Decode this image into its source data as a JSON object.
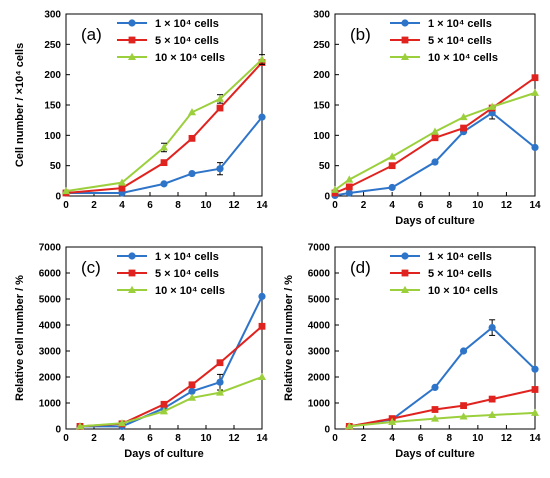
{
  "figure": {
    "chart_data": [
      {
        "type": "line",
        "panel_label": "(a)",
        "xlabel": "",
        "ylabel": "Cell number / ×10⁴ cells",
        "xlim": [
          0,
          14
        ],
        "ylim": [
          0,
          300
        ],
        "xticks": [
          0,
          2,
          4,
          6,
          8,
          10,
          12,
          14
        ],
        "yticks": [
          0,
          50,
          100,
          150,
          200,
          250,
          300
        ],
        "grid": false,
        "legend_position": "top-right",
        "series": [
          {
            "name": "1 × 10⁴ cells",
            "color": "#2e74c9",
            "marker": "circle",
            "x": [
              0,
              4,
              7,
              9,
              11,
              14
            ],
            "y": [
              5,
              5,
              20,
              37,
              45,
              130
            ],
            "err": [
              0,
              0,
              0,
              0,
              10,
              0
            ]
          },
          {
            "name": "5 × 10⁴ cells",
            "color": "#e0231f",
            "marker": "square",
            "x": [
              0,
              4,
              7,
              9,
              11,
              14
            ],
            "y": [
              5,
              13,
              55,
              95,
              145,
              220
            ],
            "err": [
              0,
              0,
              0,
              0,
              0,
              0
            ]
          },
          {
            "name": "10 × 10⁴ cells",
            "color": "#9bcf3c",
            "marker": "triangle",
            "x": [
              0,
              4,
              7,
              9,
              11,
              14
            ],
            "y": [
              8,
              22,
              80,
              138,
              160,
              225
            ],
            "err": [
              0,
              0,
              7,
              0,
              7,
              8
            ]
          }
        ]
      },
      {
        "type": "line",
        "panel_label": "(b)",
        "xlabel": "Days of culture",
        "ylabel": "",
        "xlim": [
          0,
          14
        ],
        "ylim": [
          0,
          300
        ],
        "xticks": [
          0,
          2,
          4,
          6,
          8,
          10,
          12,
          14
        ],
        "yticks": [
          0,
          50,
          100,
          150,
          200,
          250,
          300
        ],
        "grid": false,
        "legend_position": "top-right",
        "series": [
          {
            "name": "1 × 10⁴ cells",
            "color": "#2e74c9",
            "marker": "circle",
            "x": [
              0,
              1,
              4,
              7,
              9,
              11,
              14
            ],
            "y": [
              1,
              5,
              14,
              56,
              106,
              137,
              80
            ],
            "err": [
              0,
              0,
              0,
              0,
              0,
              10,
              0
            ]
          },
          {
            "name": "5 × 10⁴ cells",
            "color": "#e0231f",
            "marker": "square",
            "x": [
              0,
              1,
              4,
              7,
              9,
              11,
              14
            ],
            "y": [
              5,
              15,
              50,
              96,
              112,
              145,
              195
            ],
            "err": [
              0,
              0,
              0,
              0,
              0,
              0,
              0
            ]
          },
          {
            "name": "10 × 10⁴ cells",
            "color": "#9bcf3c",
            "marker": "triangle",
            "x": [
              0,
              1,
              4,
              7,
              9,
              11,
              14
            ],
            "y": [
              10,
              27,
              65,
              106,
              130,
              147,
              170
            ],
            "err": [
              0,
              0,
              0,
              0,
              0,
              0,
              0
            ]
          }
        ]
      },
      {
        "type": "line",
        "panel_label": "(c)",
        "xlabel": "Days of culture",
        "ylabel": "Relative cell number / %",
        "xlim": [
          0,
          14
        ],
        "ylim": [
          0,
          7000
        ],
        "xticks": [
          0,
          2,
          4,
          6,
          8,
          10,
          12,
          14
        ],
        "yticks": [
          0,
          1000,
          2000,
          3000,
          4000,
          5000,
          6000,
          7000
        ],
        "grid": false,
        "legend_position": "top-right",
        "series": [
          {
            "name": "1 × 10⁴ cells",
            "color": "#2e74c9",
            "marker": "circle",
            "x": [
              1,
              4,
              7,
              9,
              11,
              14
            ],
            "y": [
              100,
              100,
              800,
              1450,
              1800,
              5100
            ],
            "err": [
              0,
              0,
              0,
              0,
              300,
              0
            ]
          },
          {
            "name": "5 × 10⁴ cells",
            "color": "#e0231f",
            "marker": "square",
            "x": [
              1,
              4,
              7,
              9,
              11,
              14
            ],
            "y": [
              100,
              200,
              950,
              1700,
              2550,
              3950
            ],
            "err": [
              0,
              0,
              0,
              0,
              0,
              0
            ]
          },
          {
            "name": "10 × 10⁴ cells",
            "color": "#9bcf3c",
            "marker": "triangle",
            "x": [
              1,
              4,
              7,
              9,
              11,
              14
            ],
            "y": [
              100,
              220,
              680,
              1200,
              1400,
              2000
            ],
            "err": [
              0,
              0,
              0,
              0,
              0,
              0
            ]
          }
        ]
      },
      {
        "type": "line",
        "panel_label": "(d)",
        "xlabel": "Days of culture",
        "ylabel": "Relative cell number / %",
        "xlim": [
          0,
          14
        ],
        "ylim": [
          0,
          7000
        ],
        "xticks": [
          0,
          2,
          4,
          6,
          8,
          10,
          12,
          14
        ],
        "yticks": [
          0,
          1000,
          2000,
          3000,
          4000,
          5000,
          6000,
          7000
        ],
        "grid": false,
        "legend_position": "top-right",
        "series": [
          {
            "name": "1 × 10⁴ cells",
            "color": "#2e74c9",
            "marker": "circle",
            "x": [
              1,
              4,
              7,
              9,
              11,
              14
            ],
            "y": [
              100,
              370,
              1600,
              3000,
              3900,
              2300
            ],
            "err": [
              0,
              0,
              0,
              0,
              300,
              0
            ]
          },
          {
            "name": "5 × 10⁴ cells",
            "color": "#e0231f",
            "marker": "square",
            "x": [
              1,
              4,
              7,
              9,
              11,
              14
            ],
            "y": [
              100,
              400,
              750,
              900,
              1150,
              1520
            ],
            "err": [
              0,
              0,
              0,
              0,
              0,
              0
            ]
          },
          {
            "name": "10 × 10⁴ cells",
            "color": "#9bcf3c",
            "marker": "triangle",
            "x": [
              1,
              4,
              7,
              9,
              11,
              14
            ],
            "y": [
              100,
              270,
              400,
              480,
              540,
              620
            ],
            "err": [
              0,
              0,
              0,
              0,
              0,
              0
            ]
          }
        ]
      }
    ]
  }
}
